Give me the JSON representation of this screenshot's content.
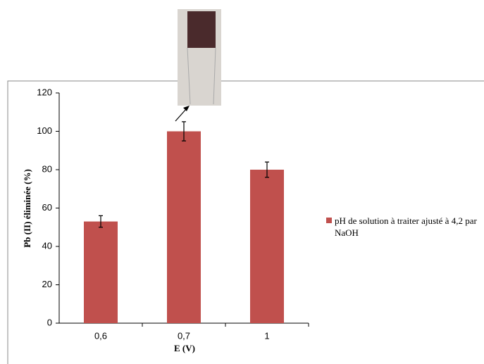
{
  "chart_data": {
    "type": "bar",
    "xlabel": "E (V)",
    "ylabel": "Pb (II) éliminée (%)",
    "categories": [
      "0,6",
      "0,7",
      "1"
    ],
    "series": [
      {
        "name": "pH de solution à traiter ajusté à 4,2 par NaOH",
        "color": "#c0504d",
        "values": [
          53,
          100,
          80
        ],
        "errors": [
          3,
          5,
          4
        ]
      }
    ],
    "ylim": [
      0,
      120
    ],
    "yticks": [
      0,
      20,
      40,
      60,
      80,
      100,
      120
    ],
    "grid": false,
    "legend": "right"
  }
}
